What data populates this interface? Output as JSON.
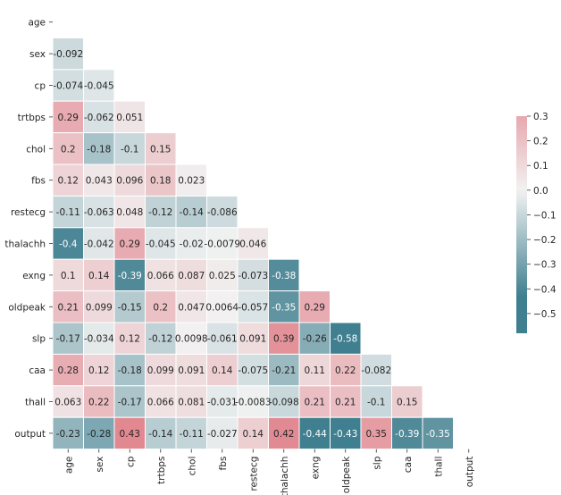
{
  "chart_data": {
    "type": "heatmap",
    "title": "",
    "xlabel": "",
    "ylabel": "",
    "variables": [
      "age",
      "sex",
      "cp",
      "trtbps",
      "chol",
      "fbs",
      "restecg",
      "thalachh",
      "exng",
      "oldpeak",
      "slp",
      "caa",
      "thall",
      "output"
    ],
    "mask": "upper-triangle-including-diagonal",
    "lower_triangle": [
      [],
      [
        "-0.092"
      ],
      [
        "-0.074",
        "-0.045"
      ],
      [
        "0.29",
        "-0.062",
        "0.051"
      ],
      [
        "0.2",
        "-0.18",
        "-0.1",
        "0.15"
      ],
      [
        "0.12",
        "0.043",
        "0.096",
        "0.18",
        "0.023"
      ],
      [
        "-0.11",
        "-0.063",
        "0.048",
        "-0.12",
        "-0.14",
        "-0.086"
      ],
      [
        "-0.4",
        "-0.042",
        "0.29",
        "-0.045",
        "-0.02",
        "-0.0079",
        "0.046"
      ],
      [
        "0.1",
        "0.14",
        "-0.39",
        "0.066",
        "0.087",
        "0.025",
        "-0.073",
        "-0.38"
      ],
      [
        "0.21",
        "0.099",
        "-0.15",
        "0.2",
        "0.047",
        "0.0064",
        "-0.057",
        "-0.35",
        "0.29"
      ],
      [
        "-0.17",
        "-0.034",
        "0.12",
        "-0.12",
        "0.0098",
        "-0.061",
        "0.091",
        "0.39",
        "-0.26",
        "-0.58"
      ],
      [
        "0.28",
        "0.12",
        "-0.18",
        "0.099",
        "0.091",
        "0.14",
        "-0.075",
        "-0.21",
        "0.11",
        "0.22",
        "-0.082"
      ],
      [
        "0.063",
        "0.22",
        "-0.17",
        "0.066",
        "0.081",
        "-0.031",
        "-0.0083",
        "-0.098",
        "0.21",
        "0.21",
        "-0.1",
        "0.15"
      ],
      [
        "-0.23",
        "-0.28",
        "0.43",
        "-0.14",
        "-0.11",
        "-0.027",
        "0.14",
        "0.42",
        "-0.44",
        "-0.43",
        "0.35",
        "-0.39",
        "-0.35"
      ]
    ],
    "colorbar": {
      "vmin": -0.58,
      "vmax": 0.3,
      "ticks": [
        "0.3",
        "0.2",
        "0.1",
        "0.0",
        "−0.1",
        "−0.2",
        "−0.3",
        "−0.4",
        "−0.5"
      ],
      "tick_values": [
        0.3,
        0.2,
        0.1,
        0.0,
        -0.1,
        -0.2,
        -0.3,
        -0.4,
        -0.5
      ]
    },
    "colormap": {
      "center": 0,
      "negative_color": "#3f7f8f",
      "neutral_color": "#f2f2f2",
      "positive_color": "#e28891",
      "scale_extent": 0.43
    },
    "grid_color": "#ffffff"
  }
}
